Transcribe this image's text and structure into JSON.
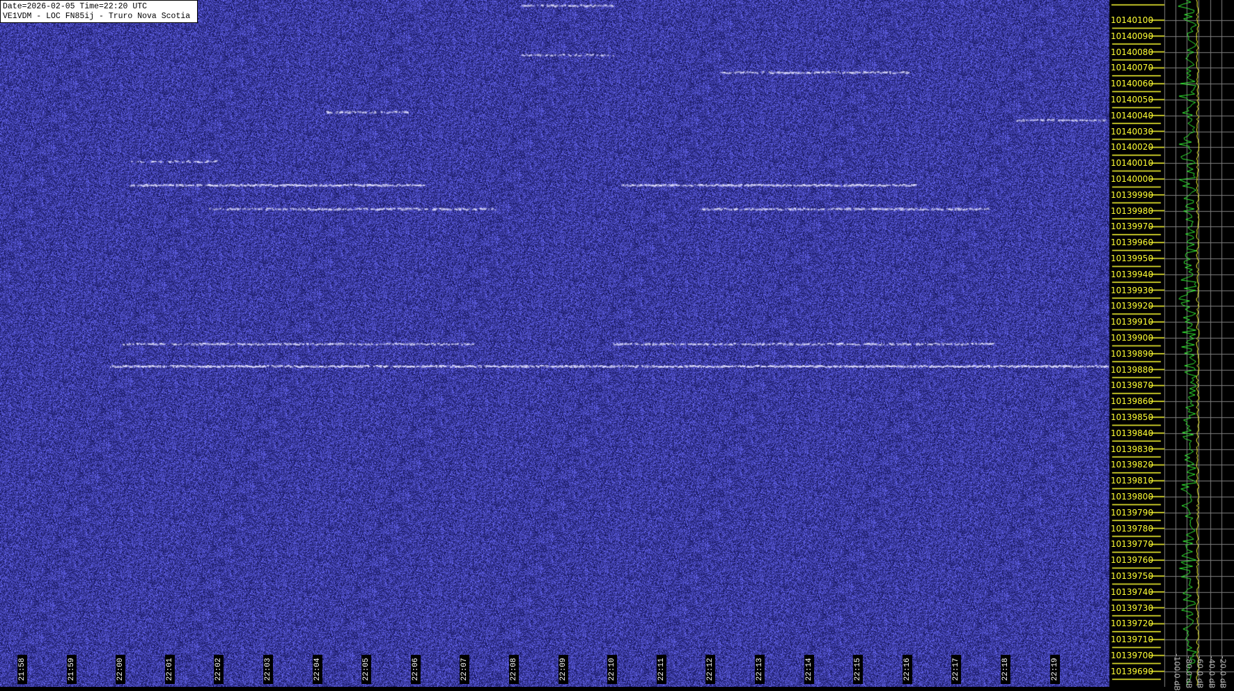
{
  "header": {
    "line1": "Date=2026-02-05 Time=22:20 UTC",
    "line2": "VE1VDM - LOC FN85ij - Truro Nova Scotia"
  },
  "colors": {
    "background_noise": "#3a3ad8",
    "signal": "#d8d8ff",
    "axis_text": "#ffff33",
    "spectrum_avg": "#33ee33",
    "spectrum_peak": "#ffff33",
    "grid": "#808080"
  },
  "chart_data": {
    "type": "heatmap",
    "subtype": "waterfall spectrogram",
    "x_axis": {
      "ticks": [
        "21:58",
        "21:59",
        "22:00",
        "22:01",
        "22:02",
        "22:03",
        "22:04",
        "22:05",
        "22:06",
        "22:07",
        "22:08",
        "22:09",
        "22:10",
        "22:11",
        "22:12",
        "22:13",
        "22:14",
        "22:15",
        "22:16",
        "22:17",
        "22:18",
        "22:19"
      ]
    },
    "y_axis": {
      "range": [
        10139685,
        10140110
      ],
      "ticks": [
        10140100,
        10140090,
        10140080,
        10140070,
        10140060,
        10140050,
        10140040,
        10140030,
        10140020,
        10140010,
        10140000,
        10139990,
        10139980,
        10139970,
        10139960,
        10139950,
        10139940,
        10139930,
        10139920,
        10139910,
        10139900,
        10139890,
        10139880,
        10139870,
        10139860,
        10139850,
        10139840,
        10139830,
        10139820,
        10139810,
        10139800,
        10139790,
        10139780,
        10139770,
        10139760,
        10139750,
        10139740,
        10139730,
        10139720,
        10139710,
        10139700,
        10139690
      ]
    },
    "signals": [
      {
        "freq": 10139882,
        "start": "21:59:47",
        "end": "22:20:05",
        "strength": 0.8
      },
      {
        "freq": 10139896,
        "start": "22:00:02",
        "end": "22:07:09",
        "strength": 0.55
      },
      {
        "freq": 10139896,
        "start": "22:10:01",
        "end": "22:17:47",
        "strength": 0.55
      },
      {
        "freq": 10139996,
        "start": "22:00:11",
        "end": "22:06:11",
        "strength": 0.75
      },
      {
        "freq": 10139996,
        "start": "22:10:11",
        "end": "22:16:11",
        "strength": 0.75
      },
      {
        "freq": 10139981,
        "start": "22:01:47",
        "end": "22:07:38",
        "strength": 0.6
      },
      {
        "freq": 10139981,
        "start": "22:11:47",
        "end": "22:17:38",
        "strength": 0.6
      },
      {
        "freq": 10140067,
        "start": "22:12:11",
        "end": "22:16:02",
        "strength": 0.55
      },
      {
        "freq": 10140078,
        "start": "22:08:09",
        "end": "22:10:01",
        "strength": 0.45
      },
      {
        "freq": 10140042,
        "start": "22:04:11",
        "end": "22:05:57",
        "strength": 0.45
      },
      {
        "freq": 10140037,
        "start": "22:18:12",
        "end": "22:20:02",
        "strength": 0.45
      },
      {
        "freq": 10140011,
        "start": "22:00:11",
        "end": "22:01:57",
        "strength": 0.4
      },
      {
        "freq": 10140109,
        "start": "22:08:09",
        "end": "22:10:01",
        "strength": 0.5
      }
    ],
    "spectrum": {
      "db_ticks": [
        "-100.0 dB",
        "-80.0 dB",
        "-60.0 dB",
        "-40.0 dB",
        "-20.0 dB"
      ],
      "grid": true
    }
  }
}
